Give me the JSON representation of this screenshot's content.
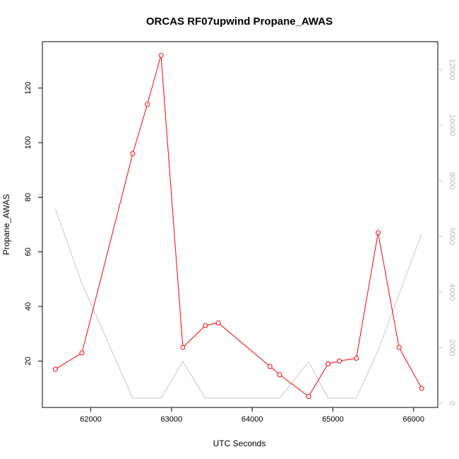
{
  "chart_data": {
    "type": "line",
    "title": "ORCAS RF07upwind Propane_AWAS",
    "xlabel": "UTC Seconds",
    "ylabel": "Propane_AWAS",
    "xlim": [
      61400,
      66300
    ],
    "ylim": [
      3,
      137
    ],
    "y2lim": [
      -150,
      13000
    ],
    "x_ticks": [
      62000,
      63000,
      64000,
      65000,
      66000
    ],
    "y_ticks": [
      20,
      40,
      60,
      80,
      100,
      120
    ],
    "y2_ticks": [
      0,
      2000,
      4000,
      6000,
      8000,
      10000,
      12000
    ],
    "grid": false,
    "colors": {
      "primary": "#ff0000",
      "secondary": "#c8c8c8",
      "axis": "#000000",
      "axis2": "#bdbdbd"
    },
    "series": [
      {
        "axis": "left",
        "style": "line+points",
        "color": "#ff0000",
        "x": [
          61560,
          61890,
          62520,
          62700,
          62870,
          63140,
          63420,
          63580,
          64220,
          64340,
          64700,
          64940,
          65080,
          65290,
          65560,
          65820,
          66100
        ],
        "values": [
          17,
          23,
          96,
          114,
          132,
          25,
          33,
          34,
          18,
          15,
          7,
          19,
          20,
          21,
          67,
          25,
          10
        ]
      },
      {
        "axis": "right",
        "style": "line",
        "color": "#c8c8c8",
        "x": [
          61560,
          61890,
          62520,
          62870,
          63140,
          63420,
          64340,
          64700,
          64940,
          65290,
          65560,
          66100
        ],
        "values": [
          7000,
          4300,
          180,
          180,
          1500,
          180,
          180,
          1500,
          180,
          180,
          1900,
          6100
        ]
      }
    ]
  }
}
